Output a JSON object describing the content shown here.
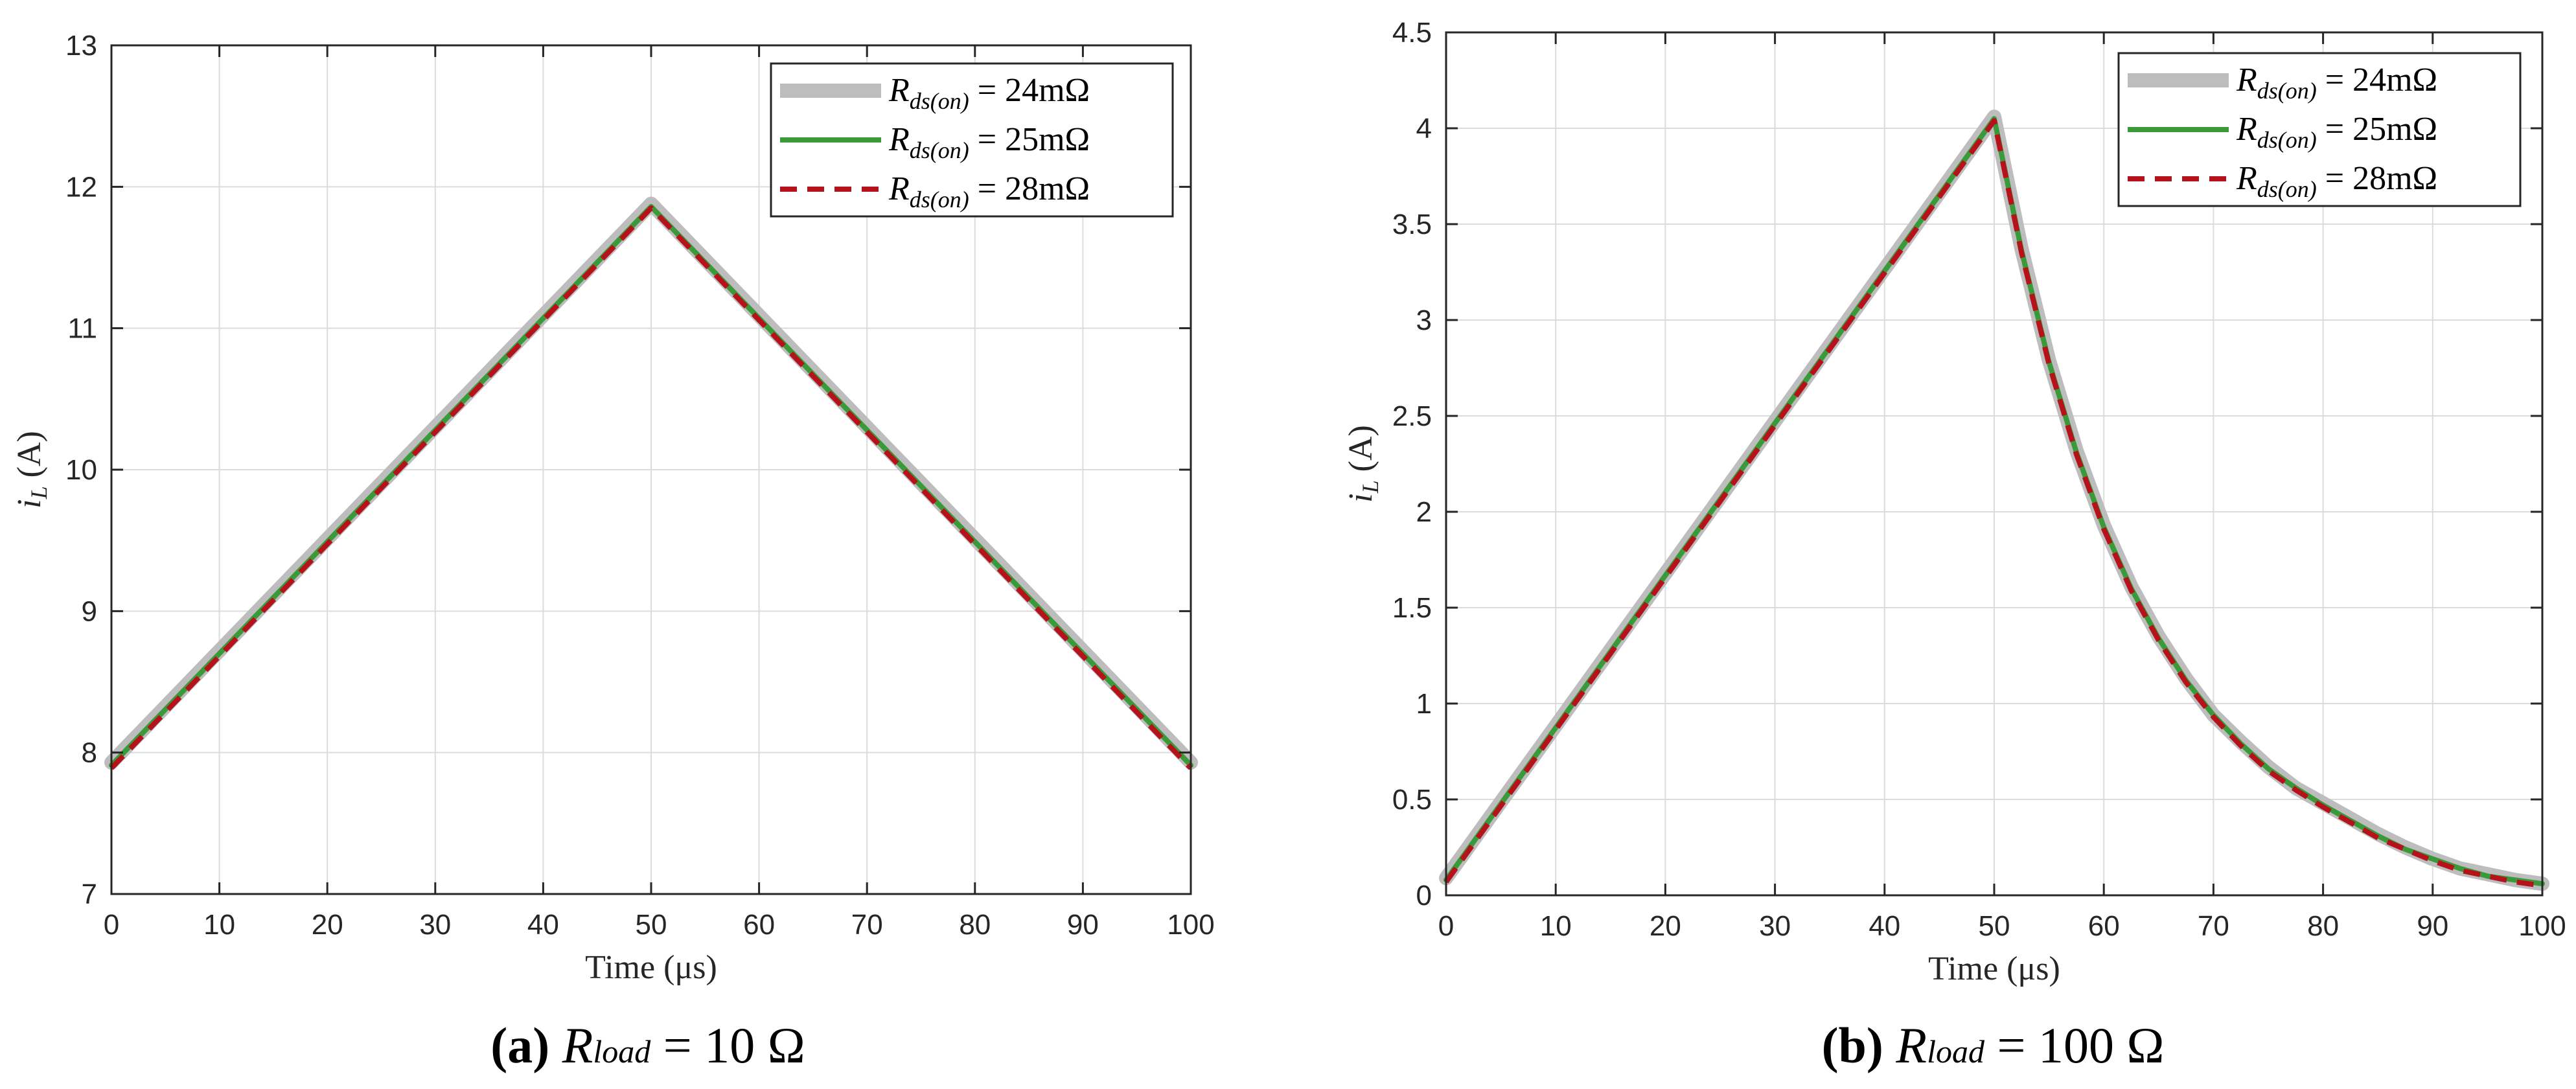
{
  "chart_data": [
    {
      "type": "line",
      "caption": {
        "label": "(a)",
        "symbol": "R",
        "sub": "load",
        "rest": "= 10 Ω"
      },
      "xlabel": "Time (μs)",
      "ylabel_main": "i",
      "ylabel_sub": "L",
      "ylabel_unit": "(A)",
      "xlim": [
        0,
        100
      ],
      "ylim": [
        7,
        13
      ],
      "xticks": [
        0,
        10,
        20,
        30,
        40,
        50,
        60,
        70,
        80,
        90,
        100
      ],
      "yticks": [
        7,
        8,
        9,
        10,
        11,
        12,
        13
      ],
      "xtick_labels": [
        "0",
        "10",
        "20",
        "30",
        "40",
        "50",
        "60",
        "70",
        "80",
        "90",
        "100"
      ],
      "ytick_labels": [
        "7",
        "8",
        "9",
        "10",
        "11",
        "12",
        "13"
      ],
      "grid": true,
      "legend_position": "top-right",
      "series": [
        {
          "name": "R",
          "name_sub": "ds(on)",
          "name_eq": "= 24mΩ",
          "color": "#bdbdbd",
          "style": "solid-thick",
          "x": [
            0,
            50,
            100
          ],
          "y": [
            7.93,
            11.88,
            7.93
          ]
        },
        {
          "name": "R",
          "name_sub": "ds(on)",
          "name_eq": "= 25mΩ",
          "color": "#3a9a3a",
          "style": "solid",
          "x": [
            0,
            50,
            100
          ],
          "y": [
            7.91,
            11.86,
            7.91
          ]
        },
        {
          "name": "R",
          "name_sub": "ds(on)",
          "name_eq": "= 28mΩ",
          "color": "#b5121b",
          "style": "dashed",
          "x": [
            0,
            50,
            100
          ],
          "y": [
            7.89,
            11.85,
            7.89
          ]
        }
      ]
    },
    {
      "type": "line",
      "caption": {
        "label": "(b)",
        "symbol": "R",
        "sub": "load",
        "rest": "= 100 Ω"
      },
      "xlabel": "Time (μs)",
      "ylabel_main": "i",
      "ylabel_sub": "L",
      "ylabel_unit": "(A)",
      "xlim": [
        0,
        100
      ],
      "ylim": [
        0,
        4.5
      ],
      "xticks": [
        0,
        10,
        20,
        30,
        40,
        50,
        60,
        70,
        80,
        90,
        100
      ],
      "yticks": [
        0,
        0.5,
        1,
        1.5,
        2,
        2.5,
        3,
        3.5,
        4,
        4.5
      ],
      "xtick_labels": [
        "0",
        "10",
        "20",
        "30",
        "40",
        "50",
        "60",
        "70",
        "80",
        "90",
        "100"
      ],
      "ytick_labels": [
        "0",
        "0.5",
        "1",
        "1.5",
        "2",
        "2.5",
        "3",
        "3.5",
        "4",
        "4.5"
      ],
      "grid": true,
      "legend_position": "top-right",
      "series": [
        {
          "name": "R",
          "name_sub": "ds(on)",
          "name_eq": "= 24mΩ",
          "color": "#bdbdbd",
          "style": "solid-thick",
          "x": [
            0,
            50,
            52.5,
            55,
            57.5,
            60,
            62.5,
            65,
            67.5,
            70,
            72.5,
            75,
            77.5,
            80,
            82.5,
            85,
            87.5,
            90,
            92.5,
            95,
            97.5,
            100
          ],
          "y": [
            0.09,
            4.06,
            3.37,
            2.79,
            2.32,
            1.93,
            1.61,
            1.35,
            1.13,
            0.94,
            0.8,
            0.67,
            0.56,
            0.48,
            0.4,
            0.32,
            0.25,
            0.19,
            0.14,
            0.11,
            0.08,
            0.06
          ]
        },
        {
          "name": "R",
          "name_sub": "ds(on)",
          "name_eq": "= 25mΩ",
          "color": "#3a9a3a",
          "style": "solid",
          "x": [
            0,
            50,
            52.5,
            55,
            57.5,
            60,
            62.5,
            65,
            67.5,
            70,
            72.5,
            75,
            77.5,
            80,
            82.5,
            85,
            87.5,
            90,
            92.5,
            95,
            97.5,
            100
          ],
          "y": [
            0.08,
            4.05,
            3.36,
            2.78,
            2.31,
            1.92,
            1.6,
            1.34,
            1.12,
            0.94,
            0.79,
            0.66,
            0.56,
            0.47,
            0.39,
            0.31,
            0.24,
            0.19,
            0.14,
            0.1,
            0.08,
            0.06
          ]
        },
        {
          "name": "R",
          "name_sub": "ds(on)",
          "name_eq": "= 28mΩ",
          "color": "#b5121b",
          "style": "dashed",
          "x": [
            0,
            50,
            52.5,
            55,
            57.5,
            60,
            62.5,
            65,
            67.5,
            70,
            72.5,
            75,
            77.5,
            80,
            82.5,
            85,
            87.5,
            90,
            92.5,
            95,
            97.5,
            100
          ],
          "y": [
            0.07,
            4.04,
            3.35,
            2.77,
            2.3,
            1.91,
            1.59,
            1.33,
            1.11,
            0.93,
            0.78,
            0.65,
            0.55,
            0.46,
            0.38,
            0.3,
            0.24,
            0.18,
            0.13,
            0.1,
            0.07,
            0.05
          ]
        }
      ]
    }
  ]
}
